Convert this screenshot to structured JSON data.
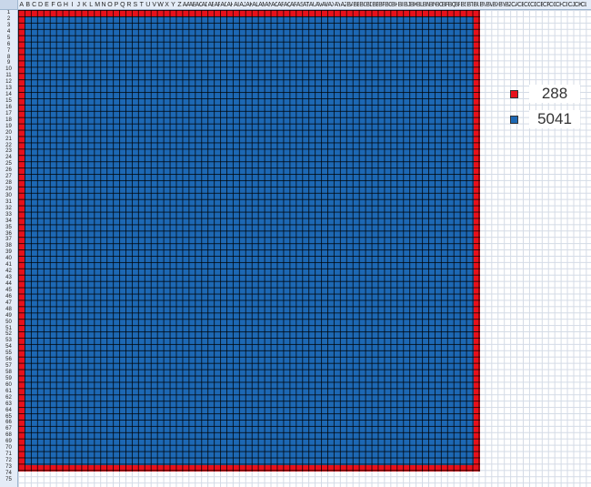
{
  "columns": [
    "A",
    "B",
    "C",
    "D",
    "E",
    "F",
    "G",
    "H",
    "I",
    "J",
    "K",
    "L",
    "M",
    "N",
    "O",
    "P",
    "Q",
    "R",
    "S",
    "T",
    "U",
    "V",
    "W",
    "X",
    "Y",
    "Z",
    "AA",
    "AB",
    "AC",
    "AD",
    "AE",
    "AF",
    "AG",
    "AH",
    "AI",
    "AJ",
    "AK",
    "AL",
    "AM",
    "AN",
    "AO",
    "AP",
    "AQ",
    "AR",
    "AS",
    "AT",
    "AU",
    "AV",
    "AW",
    "AX",
    "AY",
    "AZ",
    "BA",
    "BB",
    "BC",
    "BD",
    "BE",
    "BF",
    "BG",
    "BH",
    "BI",
    "BJ",
    "BK",
    "BL",
    "BM",
    "BN",
    "BO",
    "BP",
    "BQ",
    "BR",
    "BS",
    "BT",
    "BU",
    "BV",
    "BW",
    "BX",
    "BY",
    "BZ",
    "CA",
    "CB",
    "CC",
    "CD",
    "CE",
    "CF",
    "CG",
    "CH",
    "CI",
    "CJ",
    "CK",
    "CL"
  ],
  "rows": [
    "1",
    "2",
    "3",
    "4",
    "5",
    "6",
    "7",
    "8",
    "9",
    "10",
    "11",
    "12",
    "13",
    "14",
    "15",
    "16",
    "17",
    "18",
    "19",
    "20",
    "21",
    "22",
    "23",
    "24",
    "25",
    "26",
    "27",
    "28",
    "29",
    "30",
    "31",
    "32",
    "33",
    "34",
    "35",
    "36",
    "37",
    "38",
    "39",
    "40",
    "41",
    "42",
    "43",
    "44",
    "45",
    "46",
    "47",
    "48",
    "49",
    "50",
    "51",
    "52",
    "53",
    "54",
    "55",
    "56",
    "57",
    "58",
    "59",
    "60",
    "61",
    "62",
    "63",
    "64",
    "65",
    "66",
    "67",
    "68",
    "69",
    "70",
    "71",
    "72",
    "73",
    "74",
    "75"
  ],
  "pattern": {
    "size": 73,
    "border_color": "#e8111b",
    "fill_color": "#1d68b4"
  },
  "legend": [
    {
      "color": "#e8111b",
      "count": "288"
    },
    {
      "color": "#1d68b4",
      "count": "5041"
    }
  ]
}
